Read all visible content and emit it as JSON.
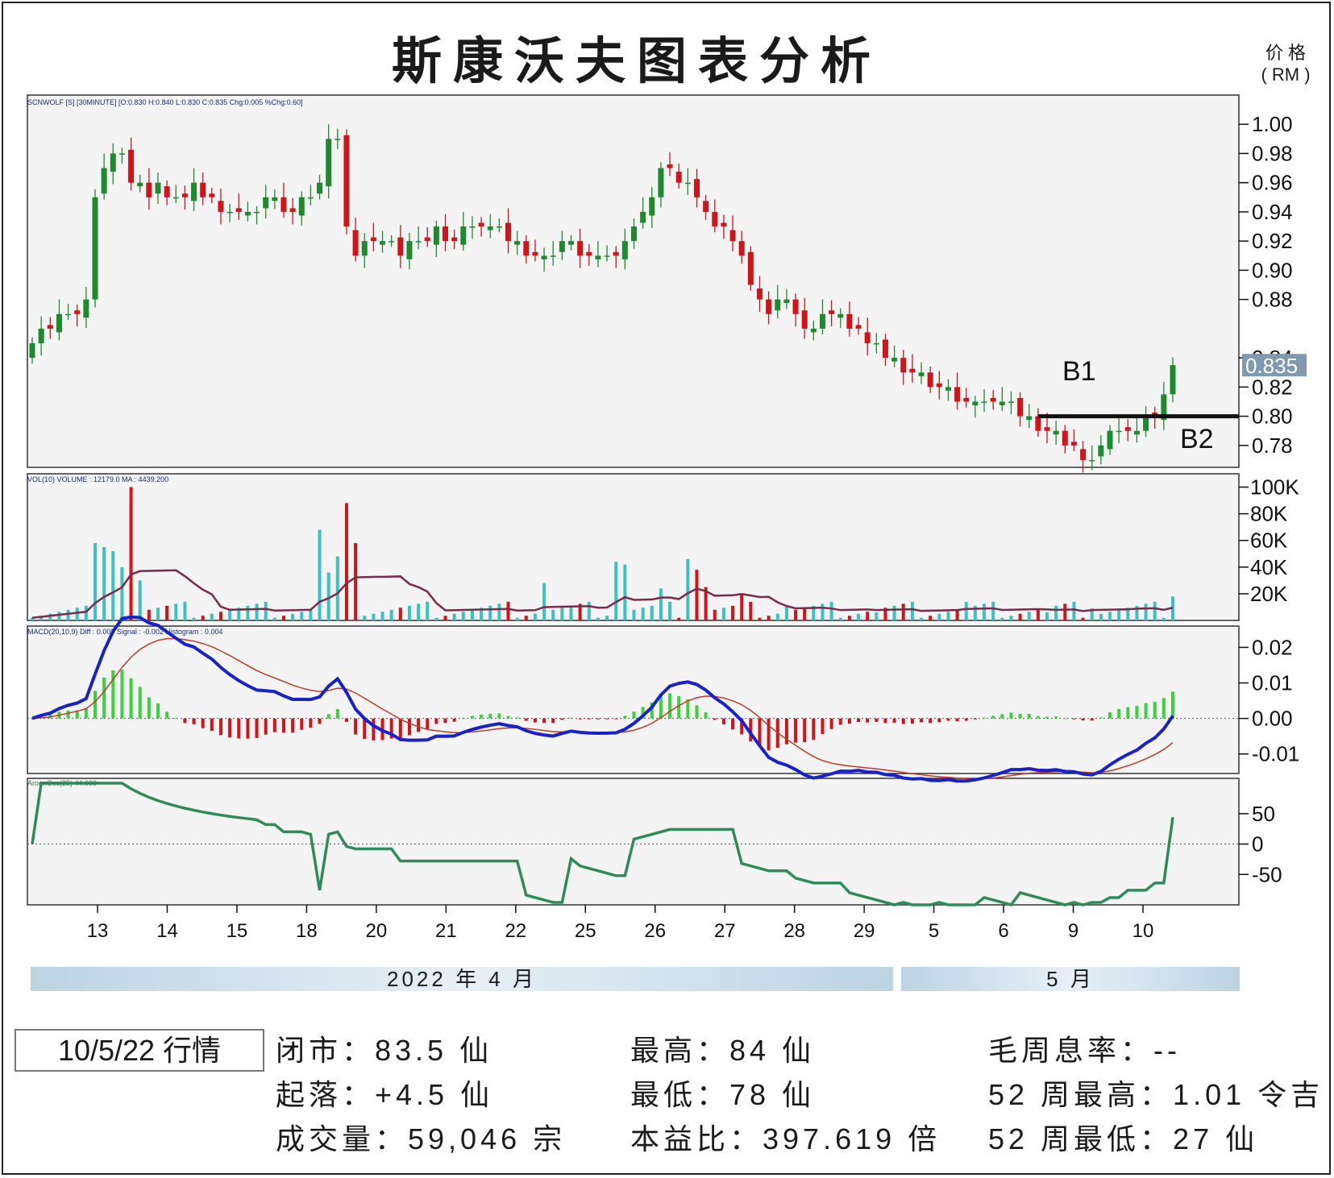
{
  "title": "斯康沃夫图表分析",
  "unit_lines": [
    "价 格",
    "( RM )"
  ],
  "panel_labels": {
    "price": "SCNWOLF [S] [30MINUTE] [O:0.830 H:0.840 L:0.830 C:0.835 Chg:0.005 %Chg:0.60]",
    "volume": "VOL(10) VOLUME : 12179.0   MA : 4439.200",
    "macd": "MACD(20,10,9)  Diff : 0.003   Signal : -0.002   Histogram : 0.004",
    "aroon": "AroonOsc(25) 44.000"
  },
  "last_price_label": "0.835",
  "annotations": {
    "b1": "B1",
    "b2": "B2"
  },
  "months": {
    "april": "2022 年 4 月",
    "may": "5 月"
  },
  "date_box": "10/5/22 行情",
  "stats": {
    "close": "闭市：83.5 仙",
    "change": "起落：+4.5 仙",
    "volume": "成交量：59,046 宗",
    "high": "最高：84 仙",
    "low": "最低：78 仙",
    "pe": "本益比：397.619 倍",
    "dividend": "毛周息率：--",
    "high52": "52 周最高：1.01 令吉",
    "low52": "52 周最低：27 仙"
  },
  "colors": {
    "up": "#1e8a2e",
    "down": "#d0141a",
    "macd": "#1822c8",
    "signal": "#c0392b",
    "ma": "#7b2a4a",
    "aroon": "#2f8c5a",
    "vol_up": "#3cc0c0"
  },
  "chart_data": {
    "type": "candlestick",
    "x_tick_labels": [
      "13",
      "14",
      "15",
      "18",
      "20",
      "21",
      "22",
      "25",
      "26",
      "27",
      "28",
      "29",
      "5",
      "6",
      "9",
      "10"
    ],
    "price_axis": {
      "ticks": [
        "1.00",
        "0.98",
        "0.96",
        "0.94",
        "0.92",
        "0.90",
        "0.88",
        "0.84",
        "0.82",
        "0.80",
        "0.78"
      ],
      "ylim": [
        0.765,
        1.02
      ]
    },
    "price_close": [
      0.85,
      0.86,
      0.86,
      0.87,
      0.87,
      0.87,
      0.88,
      0.95,
      0.97,
      0.98,
      0.98,
      0.96,
      0.96,
      0.95,
      0.96,
      0.95,
      0.95,
      0.95,
      0.96,
      0.95,
      0.95,
      0.94,
      0.94,
      0.94,
      0.94,
      0.94,
      0.95,
      0.95,
      0.94,
      0.94,
      0.95,
      0.95,
      0.96,
      0.99,
      0.99,
      0.93,
      0.91,
      0.92,
      0.92,
      0.92,
      0.92,
      0.91,
      0.92,
      0.92,
      0.92,
      0.93,
      0.92,
      0.92,
      0.93,
      0.93,
      0.93,
      0.93,
      0.93,
      0.92,
      0.92,
      0.91,
      0.91,
      0.91,
      0.91,
      0.92,
      0.92,
      0.91,
      0.91,
      0.91,
      0.91,
      0.91,
      0.92,
      0.93,
      0.94,
      0.95,
      0.97,
      0.97,
      0.96,
      0.96,
      0.95,
      0.94,
      0.93,
      0.93,
      0.92,
      0.91,
      0.89,
      0.88,
      0.87,
      0.88,
      0.88,
      0.87,
      0.86,
      0.86,
      0.87,
      0.87,
      0.87,
      0.86,
      0.86,
      0.85,
      0.85,
      0.84,
      0.84,
      0.83,
      0.83,
      0.83,
      0.82,
      0.82,
      0.82,
      0.81,
      0.81,
      0.81,
      0.81,
      0.81,
      0.81,
      0.81,
      0.8,
      0.8,
      0.79,
      0.79,
      0.79,
      0.78,
      0.78,
      0.77,
      0.77,
      0.78,
      0.79,
      0.79,
      0.79,
      0.79,
      0.8,
      0.8,
      0.815,
      0.835
    ],
    "volume_axis": {
      "ticks": [
        "100K",
        "80K",
        "60K",
        "40K",
        "20K"
      ],
      "ylim": [
        0,
        110000
      ]
    },
    "macd_axis": {
      "ticks": [
        "0.02",
        "0.01",
        "0.00",
        "-0.01"
      ],
      "ylim": [
        -0.0155,
        0.026
      ]
    },
    "aroon_axis": {
      "ticks": [
        "50",
        "0",
        "-50"
      ],
      "ylim": [
        -100,
        108
      ]
    },
    "macd_last": {
      "diff": 0.003,
      "signal": -0.002,
      "histogram": 0.004
    },
    "aroon_last": 44.0
  }
}
